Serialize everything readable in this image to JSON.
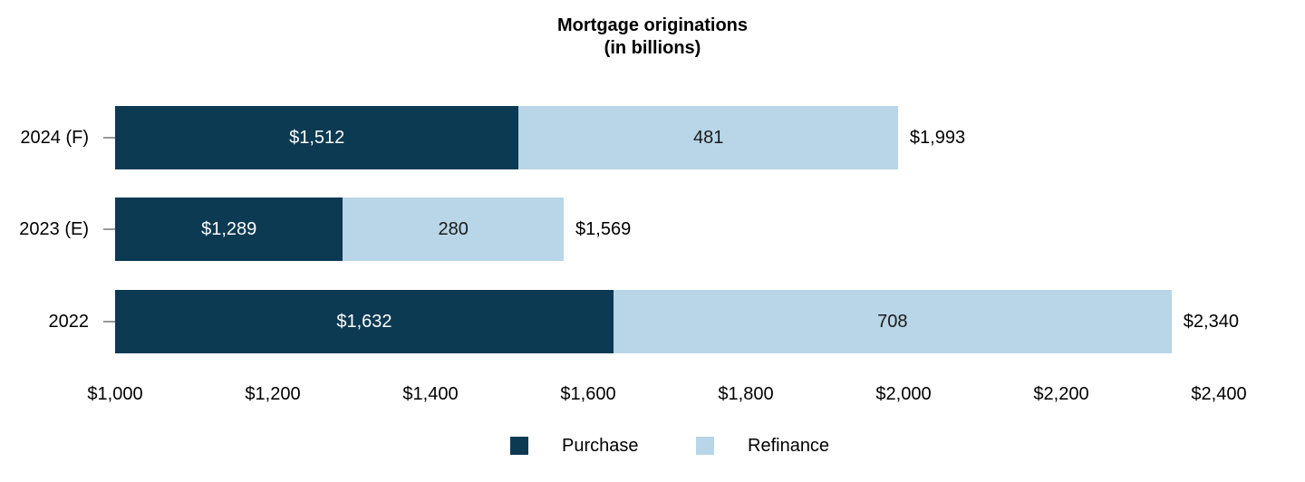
{
  "title": {
    "line1": "Mortgage originations",
    "line2": "(in billions)"
  },
  "colors": {
    "purchase": "#0c3a53",
    "refinance": "#b8d6e7",
    "axis_tick": "#999999",
    "text": "#000000",
    "label_on_dark": "#ffffff",
    "label_on_light": "#1a1a1a"
  },
  "chart_data": {
    "type": "bar",
    "orientation": "horizontal",
    "stacked": true,
    "title": "Mortgage originations (in billions)",
    "categories": [
      "2024 (F)",
      "2023 (E)",
      "2022"
    ],
    "series": [
      {
        "name": "Purchase",
        "color": "#0c3a53",
        "values": [
          1512,
          1289,
          1632
        ],
        "value_labels": [
          "$1,512",
          "$1,289",
          "$1,632"
        ]
      },
      {
        "name": "Refinance",
        "color": "#b8d6e7",
        "values": [
          481,
          280,
          708
        ],
        "value_labels": [
          "481",
          "280",
          "708"
        ]
      }
    ],
    "totals": [
      1993,
      1569,
      2340
    ],
    "total_labels": [
      "$1,993",
      "$1,569",
      "$2,340"
    ],
    "xlim": [
      1000,
      2400
    ],
    "x_ticks": [
      1000,
      1200,
      1400,
      1600,
      1800,
      2000,
      2200,
      2400
    ],
    "x_tick_labels": [
      "$1,000",
      "$1,200",
      "$1,400",
      "$1,600",
      "$1,800",
      "$2,000",
      "$2,200",
      "$2,400"
    ],
    "grid": false,
    "legend_position": "bottom"
  },
  "legend": {
    "items": [
      {
        "label": "Purchase",
        "color": "#0c3a53"
      },
      {
        "label": "Refinance",
        "color": "#b8d6e7"
      }
    ]
  }
}
